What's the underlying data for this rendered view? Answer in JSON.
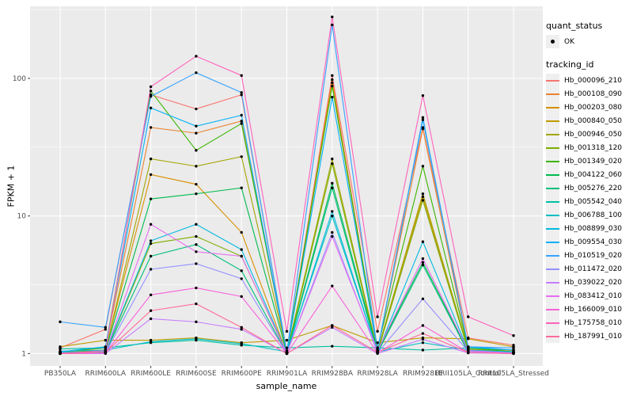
{
  "figure": {
    "axes": {
      "x_title": "sample_name",
      "y_title": "FPKM + 1"
    },
    "legend": {
      "quant_title": "quant_status",
      "quant_items": [
        "OK"
      ],
      "tracking_title": "tracking_id"
    }
  },
  "chart_data": {
    "type": "line",
    "title": "",
    "xlabel": "sample_name",
    "ylabel": "FPKM + 1",
    "y_scale": "log10",
    "y_ticks": [
      1,
      10,
      100
    ],
    "y_minor_gridlines": [
      3.162,
      31.62,
      316.2
    ],
    "grid": true,
    "legend_position": "right",
    "panel_color": "#EBEBEB",
    "gridline_color": "#FFFFFF",
    "point_color": "#000000",
    "tick_text_color": "#4d4d4d",
    "quant_status_value": "OK",
    "categories": [
      "PB350LA",
      "RRIM600LA",
      "RRIM600LE",
      "RRIM600SE",
      "RRIM600PE",
      "RRIM901LA",
      "RRIM928BA",
      "RRIM928LA",
      "RRIM928LE",
      "RRII105LA_Control",
      "RRII105LA_Stressed"
    ],
    "series": [
      {
        "name": "Hb_000096_210",
        "color": "#F8766D",
        "values": [
          1.1,
          1.5,
          76,
          60,
          76,
          1.02,
          105,
          1.45,
          44,
          1.3,
          1.15
        ]
      },
      {
        "name": "Hb_000108_090",
        "color": "#EA8331",
        "values": [
          1.02,
          1.1,
          44,
          40,
          49,
          1.01,
          98,
          1.06,
          43,
          1.1,
          1.05
        ]
      },
      {
        "name": "Hb_000203_080",
        "color": "#D89000",
        "values": [
          1.01,
          1.06,
          20,
          17,
          7.6,
          1.0,
          93,
          1.02,
          13.8,
          1.06,
          1.02
        ]
      },
      {
        "name": "Hb_000840_050",
        "color": "#C09B00",
        "values": [
          1.12,
          1.25,
          1.25,
          1.3,
          1.2,
          1.25,
          1.6,
          1.2,
          1.3,
          1.28,
          1.12
        ]
      },
      {
        "name": "Hb_000946_050",
        "color": "#A3A500",
        "values": [
          1.02,
          1.05,
          26,
          23,
          27,
          1.02,
          26,
          1.05,
          14.5,
          1.08,
          1.02
        ]
      },
      {
        "name": "Hb_001318_120",
        "color": "#7CAE00",
        "values": [
          1.0,
          1.02,
          6.3,
          7.1,
          5.1,
          1.0,
          24,
          1.02,
          13.0,
          1.05,
          1.01
        ]
      },
      {
        "name": "Hb_001349_020",
        "color": "#39B600",
        "values": [
          1.03,
          1.1,
          81,
          30,
          47,
          1.05,
          88,
          1.1,
          23,
          1.1,
          1.03
        ]
      },
      {
        "name": "Hb_004122_060",
        "color": "#00BB4E",
        "values": [
          1.01,
          1.05,
          13.3,
          14.5,
          16,
          1.01,
          17.3,
          1.04,
          4.6,
          1.04,
          1.01
        ]
      },
      {
        "name": "Hb_005276_220",
        "color": "#00BF7D",
        "values": [
          1.0,
          1.02,
          5.1,
          6.2,
          4.0,
          1.0,
          16,
          1.01,
          4.4,
          1.02,
          1.0
        ]
      },
      {
        "name": "Hb_005542_040",
        "color": "#00C1A3",
        "values": [
          1.08,
          1.1,
          1.2,
          1.25,
          1.15,
          1.1,
          1.13,
          1.1,
          1.06,
          1.1,
          1.06
        ]
      },
      {
        "name": "Hb_006788_100",
        "color": "#00BFC4",
        "values": [
          1.04,
          1.06,
          1.22,
          1.28,
          1.18,
          1.03,
          10.0,
          1.03,
          1.2,
          1.06,
          1.03
        ]
      },
      {
        "name": "Hb_008899_030",
        "color": "#00BAE0",
        "values": [
          1.02,
          1.03,
          6.6,
          8.7,
          5.7,
          1.01,
          10.8,
          1.02,
          6.5,
          1.05,
          1.02
        ]
      },
      {
        "name": "Hb_009554_030",
        "color": "#00B0F6",
        "values": [
          1.03,
          1.12,
          61,
          45,
          54,
          1.02,
          73,
          1.06,
          50,
          1.12,
          1.06
        ]
      },
      {
        "name": "Hb_010519_020",
        "color": "#35A2FF",
        "values": [
          1.7,
          1.55,
          74,
          110,
          79,
          1.02,
          245,
          1.04,
          52,
          1.12,
          1.1
        ]
      },
      {
        "name": "Hb_011472_020",
        "color": "#9590FF",
        "values": [
          1.0,
          1.01,
          4.1,
          4.5,
          3.5,
          1.0,
          7.6,
          1.01,
          2.5,
          1.04,
          1.0
        ]
      },
      {
        "name": "Hb_039022_020",
        "color": "#C77CFF",
        "values": [
          1.0,
          1.0,
          1.79,
          1.7,
          1.5,
          1.0,
          1.55,
          1.0,
          1.27,
          1.01,
          1.0
        ]
      },
      {
        "name": "Hb_083412_010",
        "color": "#E76BF3",
        "values": [
          1.01,
          1.02,
          8.7,
          5.5,
          5.1,
          1.01,
          7.1,
          1.05,
          4.9,
          1.05,
          1.01
        ]
      },
      {
        "name": "Hb_166009_010",
        "color": "#FA62DB",
        "values": [
          1.0,
          1.01,
          2.67,
          3.0,
          2.6,
          1.0,
          3.1,
          1.01,
          1.6,
          1.02,
          1.0
        ]
      },
      {
        "name": "Hb_175758_010",
        "color": "#FF62BC",
        "values": [
          1.0,
          1.05,
          87,
          145,
          105,
          1.45,
          280,
          1.85,
          75,
          1.85,
          1.35
        ]
      },
      {
        "name": "Hb_187991_010",
        "color": "#FF6A98",
        "values": [
          1.0,
          1.02,
          2.05,
          2.3,
          1.55,
          1.0,
          1.6,
          1.02,
          1.4,
          1.02,
          1.0
        ]
      }
    ]
  }
}
